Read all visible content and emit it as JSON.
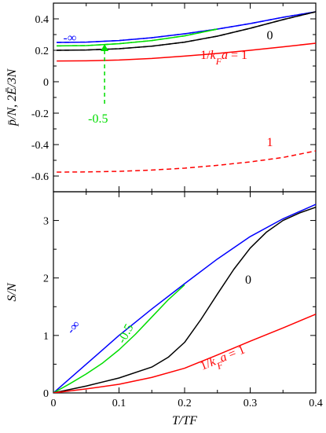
{
  "colors": {
    "blue": "#0000ff",
    "green": "#00dd00",
    "black": "#000000",
    "red": "#ff0000"
  },
  "chart_data": [
    {
      "type": "line",
      "panel": "top",
      "ylabel": "p̄/N, 2Ē/3N",
      "xlim": [
        0,
        0.4
      ],
      "ylim": [
        -0.7,
        0.5
      ],
      "yticks": [
        -0.6,
        -0.4,
        -0.2,
        0,
        0.2,
        0.4
      ],
      "yticklabels": [
        "-0.6",
        "-0.4",
        "-0.2",
        "0",
        "0.2",
        "0.4"
      ],
      "grid": false,
      "series": [
        {
          "color": "blue",
          "dash": "solid",
          "x": [
            0.005,
            0.05,
            0.1,
            0.15,
            0.2,
            0.25,
            0.3,
            0.35,
            0.4
          ],
          "y": [
            0.25,
            0.252,
            0.262,
            0.28,
            0.305,
            0.335,
            0.37,
            0.41,
            0.445
          ]
        },
        {
          "color": "blue",
          "dash": "dash",
          "x": [
            0.005,
            0.05,
            0.1,
            0.15,
            0.2,
            0.25,
            0.3,
            0.35,
            0.4
          ],
          "y": [
            0.25,
            0.252,
            0.262,
            0.28,
            0.305,
            0.335,
            0.37,
            0.41,
            0.445
          ]
        },
        {
          "color": "green",
          "dash": "solid",
          "x": [
            0.005,
            0.05,
            0.1,
            0.15,
            0.2,
            0.25
          ],
          "y": [
            0.228,
            0.23,
            0.242,
            0.262,
            0.292,
            0.335
          ]
        },
        {
          "color": "green",
          "dash": "dash",
          "x": [
            0.005,
            0.05,
            0.1,
            0.15,
            0.2,
            0.25
          ],
          "y": [
            0.228,
            0.23,
            0.242,
            0.262,
            0.292,
            0.335
          ]
        },
        {
          "color": "black",
          "dash": "solid",
          "x": [
            0.005,
            0.05,
            0.1,
            0.15,
            0.2,
            0.25,
            0.3,
            0.35,
            0.4
          ],
          "y": [
            0.2,
            0.202,
            0.21,
            0.226,
            0.252,
            0.29,
            0.34,
            0.395,
            0.445
          ]
        },
        {
          "color": "black",
          "dash": "dash",
          "x": [
            0.005,
            0.05,
            0.1,
            0.15,
            0.2,
            0.25,
            0.3,
            0.35,
            0.4
          ],
          "y": [
            0.2,
            0.202,
            0.21,
            0.226,
            0.252,
            0.29,
            0.34,
            0.395,
            0.445
          ]
        },
        {
          "color": "red",
          "dash": "solid",
          "x": [
            0.005,
            0.05,
            0.1,
            0.15,
            0.2,
            0.25,
            0.3,
            0.35,
            0.4
          ],
          "y": [
            0.132,
            0.133,
            0.138,
            0.148,
            0.163,
            0.18,
            0.2,
            0.222,
            0.245
          ]
        },
        {
          "color": "red",
          "dash": "dash",
          "x": [
            0.005,
            0.05,
            0.1,
            0.15,
            0.2,
            0.25,
            0.3,
            0.35,
            0.4
          ],
          "y": [
            -0.575,
            -0.574,
            -0.57,
            -0.562,
            -0.55,
            -0.532,
            -0.51,
            -0.482,
            -0.44
          ]
        }
      ],
      "annotations": [
        {
          "text": "-∞",
          "x": 0.025,
          "y": 0.255,
          "color": "blue"
        },
        {
          "text": "0",
          "x": 0.33,
          "y": 0.27,
          "color": "black"
        },
        {
          "text": "1/kFa = 1",
          "x": 0.26,
          "y": 0.145,
          "color": "red"
        },
        {
          "text": "-0.5",
          "x": 0.068,
          "y": -0.26,
          "color": "green"
        },
        {
          "text": "1",
          "x": 0.33,
          "y": -0.41,
          "color": "red"
        }
      ],
      "arrow": {
        "color": "green",
        "x": 0.078,
        "y_from": -0.14,
        "y_to": 0.24
      }
    },
    {
      "type": "line",
      "panel": "bottom",
      "xlabel": "T/TF",
      "ylabel": "S/N",
      "xlim": [
        0,
        0.4
      ],
      "ylim": [
        0,
        3.5
      ],
      "xticks": [
        0,
        0.1,
        0.2,
        0.3,
        0.4
      ],
      "xticklabels": [
        "0",
        "0.1",
        "0.2",
        "0.3",
        "0.4"
      ],
      "yticks": [
        0,
        1,
        2,
        3
      ],
      "yticklabels": [
        "0",
        "1",
        "2",
        "3"
      ],
      "grid": false,
      "series": [
        {
          "color": "blue",
          "x": [
            0,
            0.025,
            0.05,
            0.075,
            0.1,
            0.125,
            0.15,
            0.175,
            0.2,
            0.25,
            0.3,
            0.35,
            0.4
          ],
          "y": [
            0,
            0.25,
            0.5,
            0.75,
            1.0,
            1.23,
            1.46,
            1.68,
            1.9,
            2.33,
            2.72,
            3.03,
            3.28
          ]
        },
        {
          "color": "green",
          "x": [
            0,
            0.025,
            0.05,
            0.075,
            0.1,
            0.125,
            0.15,
            0.175,
            0.2
          ],
          "y": [
            0,
            0.16,
            0.33,
            0.52,
            0.75,
            1.02,
            1.32,
            1.62,
            1.88
          ]
        },
        {
          "color": "black",
          "x": [
            0,
            0.05,
            0.1,
            0.15,
            0.175,
            0.2,
            0.225,
            0.25,
            0.275,
            0.3,
            0.325,
            0.35,
            0.375,
            0.4
          ],
          "y": [
            0,
            0.12,
            0.26,
            0.45,
            0.62,
            0.88,
            1.28,
            1.72,
            2.15,
            2.52,
            2.8,
            3.0,
            3.13,
            3.23
          ]
        },
        {
          "color": "red",
          "x": [
            0,
            0.05,
            0.1,
            0.15,
            0.2,
            0.25,
            0.3,
            0.35,
            0.4
          ],
          "y": [
            0,
            0.07,
            0.15,
            0.27,
            0.43,
            0.66,
            0.9,
            1.13,
            1.37
          ]
        }
      ],
      "annotations": [
        {
          "text": "-∞",
          "x": 0.035,
          "y": 1.1,
          "color": "blue",
          "rotate": -50
        },
        {
          "text": "-0.5",
          "x": 0.115,
          "y": 1.0,
          "color": "green",
          "rotate": -62
        },
        {
          "text": "0",
          "x": 0.297,
          "y": 1.9,
          "color": "black"
        },
        {
          "text": "1/kFa = 1",
          "x": 0.26,
          "y": 0.55,
          "color": "red",
          "rotate": -22
        }
      ]
    }
  ]
}
